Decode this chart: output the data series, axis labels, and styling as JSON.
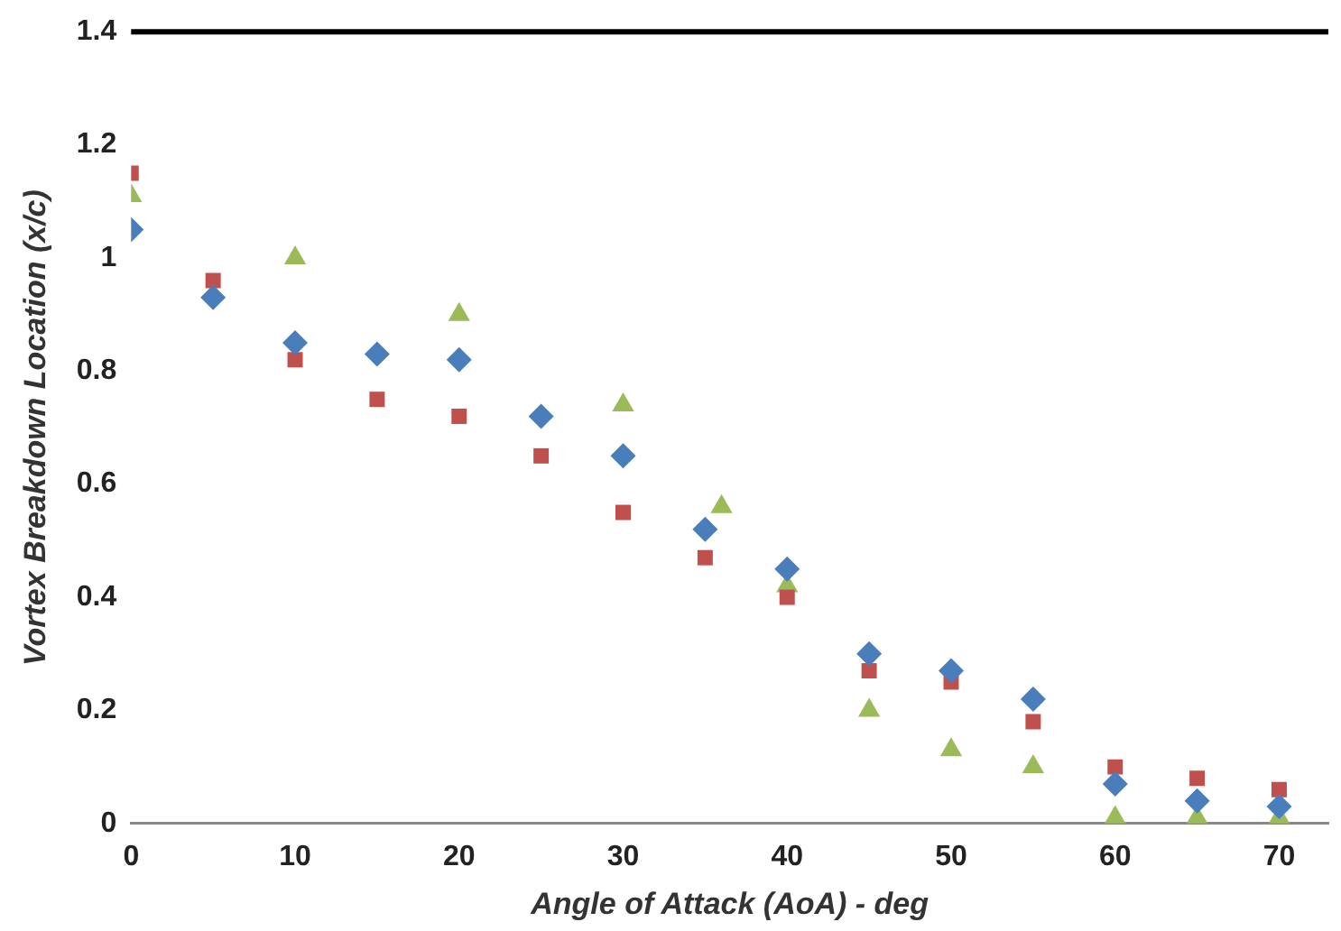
{
  "chart_data": {
    "type": "scatter",
    "xlabel": "Angle of Attack (AoA) - deg",
    "ylabel": "Vortex Breakdown Location (x/c)",
    "xlim": [
      0,
      73
    ],
    "xticks": [
      0,
      10,
      20,
      30,
      40,
      50,
      60,
      70
    ],
    "ylim": [
      0,
      1.4
    ],
    "yticks": [
      0,
      {
        "value": 0.2,
        "label": "0.2"
      },
      {
        "value": 0.4,
        "label": "0.4"
      },
      {
        "value": 0.6,
        "label": "0.6"
      },
      {
        "value": 0.8,
        "label": "0.8"
      },
      1,
      {
        "value": 1.2,
        "label": "1.2"
      },
      {
        "value": 1.4,
        "label": "1.4"
      }
    ],
    "grid": false,
    "legend": false,
    "series": [
      {
        "color": "#4a7ebb",
        "marker": "diamond",
        "x": [
          0,
          5,
          10,
          15,
          20,
          25,
          30,
          35,
          40,
          45,
          50,
          55,
          60,
          65,
          70
        ],
        "values": [
          1.05,
          0.93,
          0.85,
          0.83,
          0.82,
          0.72,
          0.65,
          0.52,
          0.45,
          0.3,
          0.27,
          0.22,
          0.07,
          0.04,
          0.03
        ]
      },
      {
        "color": "#c0504d",
        "marker": "square",
        "x": [
          0,
          5,
          10,
          15,
          20,
          25,
          30,
          35,
          40,
          45,
          50,
          55,
          60,
          65,
          70
        ],
        "values": [
          1.15,
          0.96,
          0.82,
          0.75,
          0.72,
          0.65,
          0.55,
          0.47,
          0.4,
          0.27,
          0.25,
          0.18,
          0.1,
          0.08,
          0.06
        ]
      },
      {
        "color": "#9bbb59",
        "marker": "triangle",
        "x": [
          0,
          10,
          20,
          30,
          36,
          40,
          45,
          50,
          55,
          60,
          65,
          70
        ],
        "values": [
          1.11,
          1.0,
          0.9,
          0.74,
          0.56,
          0.42,
          0.2,
          0.13,
          0.1,
          0.01,
          0.01,
          0.01
        ]
      }
    ]
  }
}
